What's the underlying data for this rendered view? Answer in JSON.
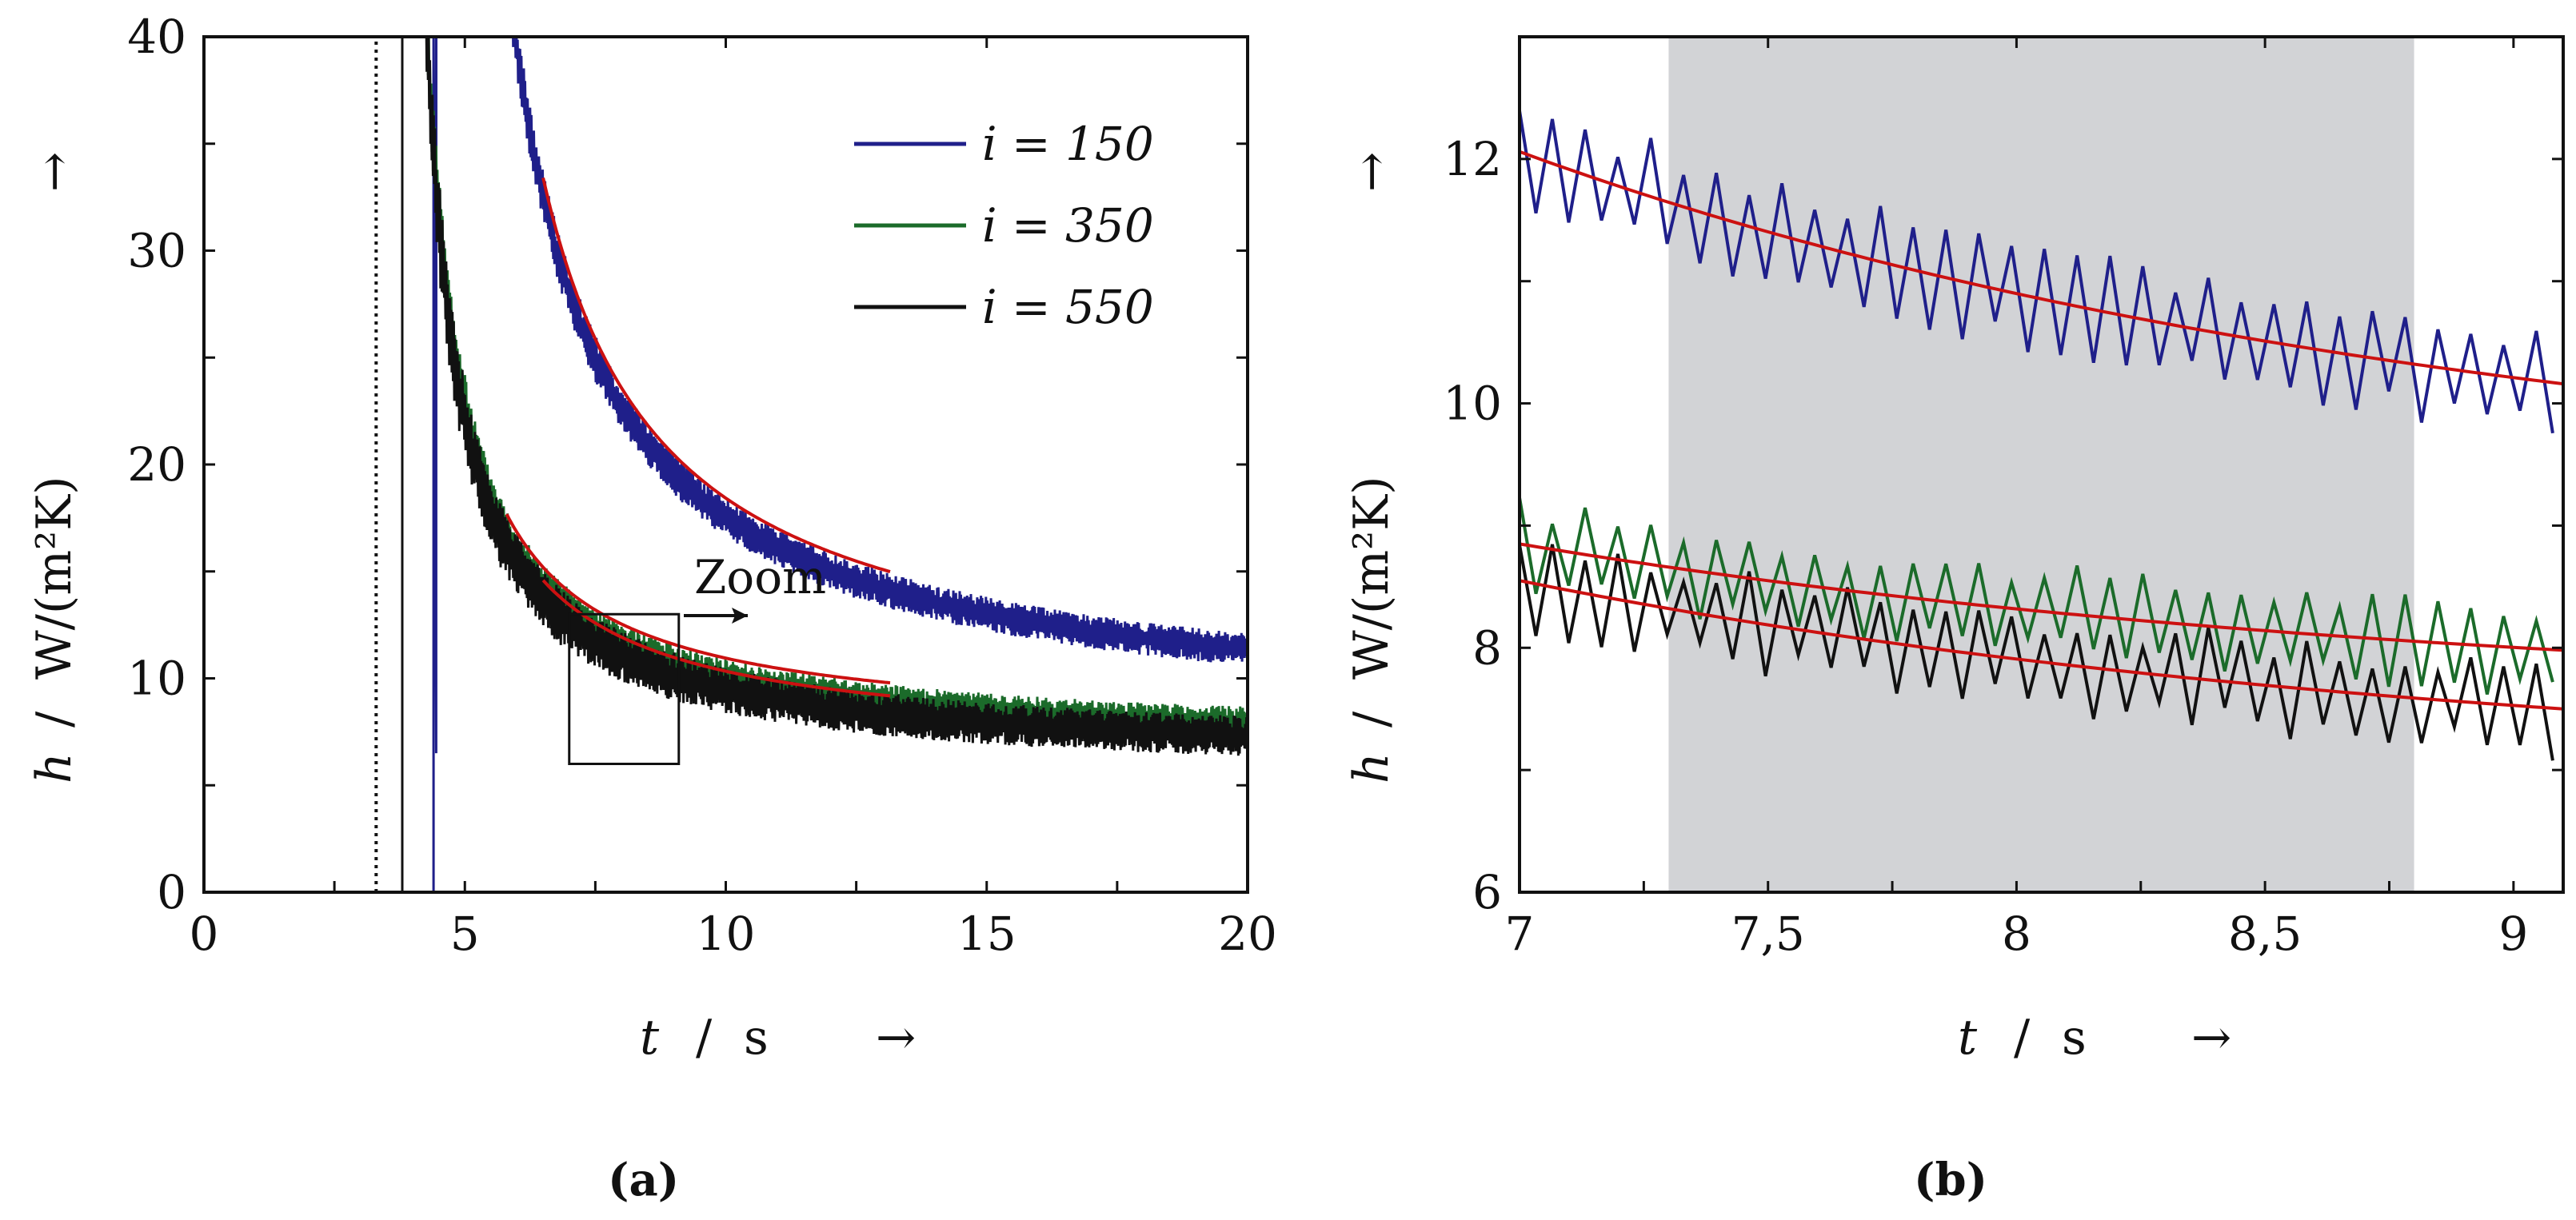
{
  "figure": {
    "caption_a": "(a)",
    "caption_b": "(b)"
  },
  "chart_data": [
    {
      "id": "a",
      "type": "line",
      "xlabel_var": "t",
      "xlabel_unit": "s",
      "ylabel_var": "h",
      "ylabel_unit": "W/(m²K)",
      "arrow": "→",
      "xlim": [
        0,
        20
      ],
      "ylim": [
        0,
        40
      ],
      "xticks": [
        0,
        5,
        10,
        15,
        20
      ],
      "xtick_labels": [
        "0",
        "5",
        "10",
        "15",
        "20"
      ],
      "yticks": [
        0,
        10,
        20,
        30,
        40
      ],
      "ytick_labels": [
        "0",
        "10",
        "20",
        "30",
        "40"
      ],
      "vline_dotted_x": 3.3,
      "zoom_label": "Zoom",
      "zoom_box": {
        "x0": 7.0,
        "x1": 9.1,
        "y0": 6.0,
        "y1": 13.0
      },
      "legend_position": "top-right",
      "series": [
        {
          "name": "i = 150",
          "legend_label": "i = 150",
          "color": "#1f1f8a",
          "onset": 4.4,
          "a": 7.77,
          "b": 56.4,
          "amp": 0.45
        },
        {
          "name": "i = 350",
          "legend_label": "i = 350",
          "color": "#1b6b2a",
          "onset": 3.8,
          "a": 6.55,
          "b": 22.3,
          "amp": 0.45
        },
        {
          "name": "i = 550",
          "legend_label": "i = 550",
          "color": "#111111",
          "onset": 3.8,
          "a": 5.94,
          "b": 22.3,
          "amp": 0.55
        }
      ],
      "fits": [
        {
          "series": "i = 150",
          "x_range": [
            6.5,
            13.2
          ],
          "color": "#cc1111"
        },
        {
          "series": "i = 350",
          "x_range": [
            5.8,
            13.2
          ],
          "color": "#cc1111"
        },
        {
          "series": "i = 550",
          "x_range": [
            6.5,
            13.2
          ],
          "color": "#cc1111"
        }
      ]
    },
    {
      "id": "b",
      "type": "line",
      "xlabel_var": "t",
      "xlabel_unit": "s",
      "ylabel_var": "h",
      "ylabel_unit": "W/(m²K)",
      "arrow": "→",
      "xlim": [
        7,
        9.1
      ],
      "ylim": [
        6,
        13
      ],
      "xticks": [
        7,
        7.5,
        8,
        8.5,
        9
      ],
      "xtick_labels": [
        "7",
        "7,5",
        "8",
        "8,5",
        "9"
      ],
      "yticks": [
        6,
        8,
        10,
        12
      ],
      "ytick_labels": [
        "6",
        "8",
        "10",
        "12"
      ],
      "shaded_region": [
        7.3,
        8.8
      ],
      "series": [
        {
          "name": "i = 150",
          "color": "#1f1f8a",
          "sample_dt": 0.033,
          "fit": [
            12.06,
            10.16
          ],
          "amp": 0.42
        },
        {
          "name": "i = 350",
          "color": "#1b6b2a",
          "sample_dt": 0.033,
          "fit": [
            8.85,
            7.98
          ],
          "amp": 0.35
        },
        {
          "name": "i = 550",
          "color": "#111111",
          "sample_dt": 0.033,
          "fit": [
            8.55,
            7.5
          ],
          "amp": 0.38
        }
      ],
      "fit_color": "#cc1111"
    }
  ]
}
